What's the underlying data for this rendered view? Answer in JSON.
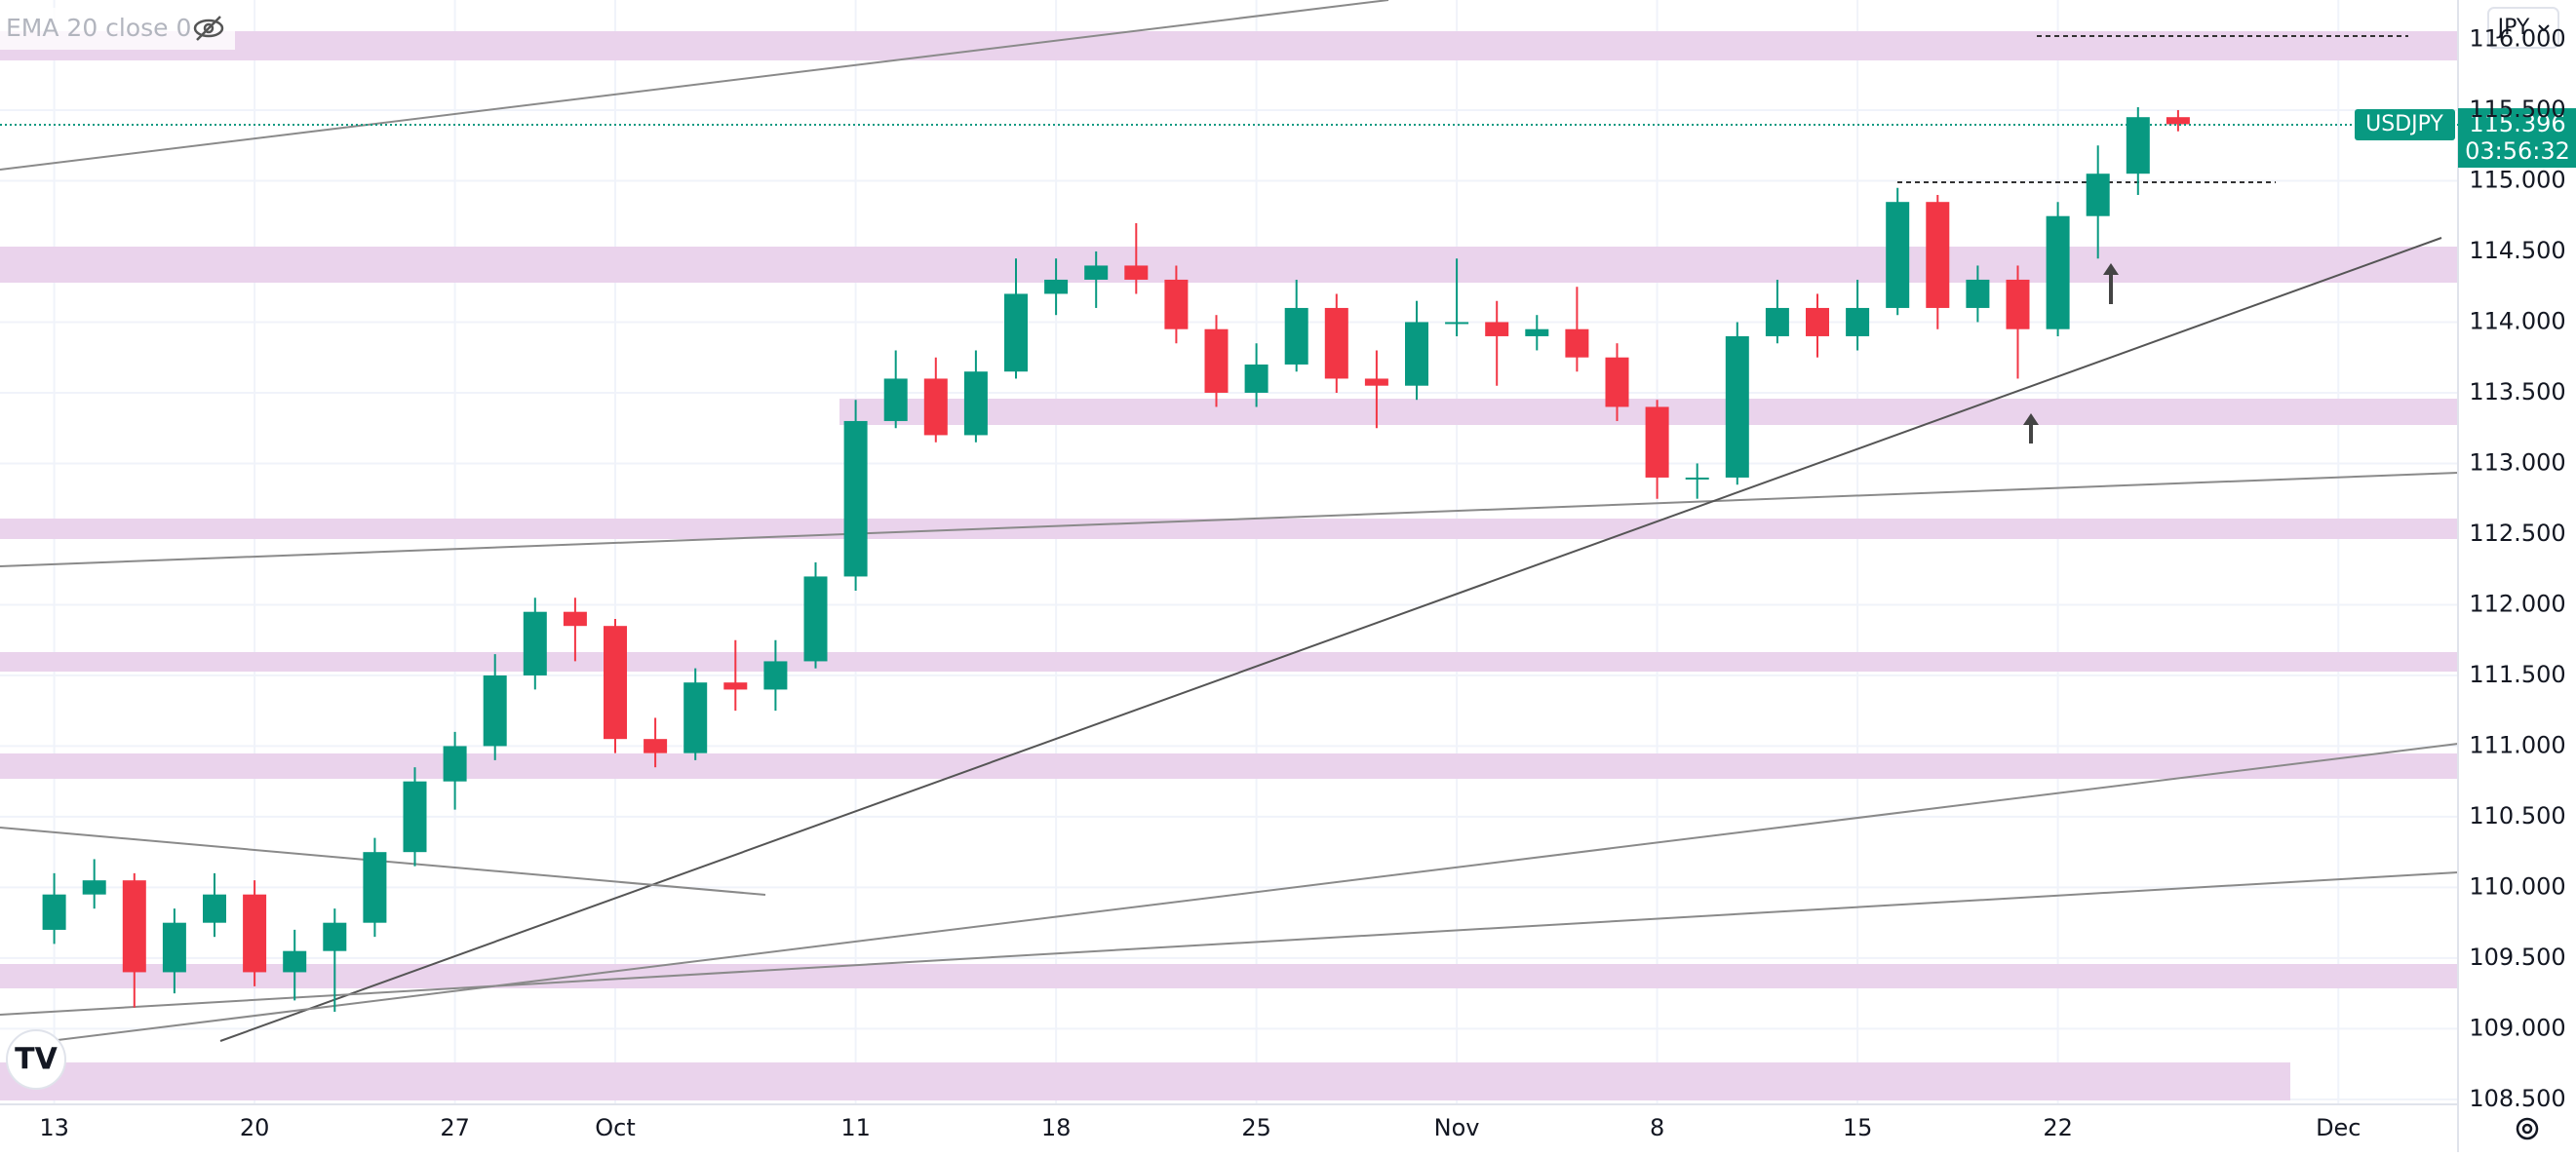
{
  "chart_data": {
    "type": "candlestick",
    "indicator_label": "EMA 20 close 0",
    "currency_button": "JPY",
    "symbol": "USDJPY",
    "last_price": 115.396,
    "countdown": "03:56:32",
    "categories": [
      "13",
      null,
      null,
      null,
      null,
      "20",
      null,
      null,
      null,
      null,
      "27",
      null,
      null,
      null,
      "Oct",
      null,
      null,
      null,
      null,
      null,
      "11",
      null,
      null,
      null,
      null,
      "18",
      null,
      null,
      null,
      null,
      "25",
      null,
      null,
      null,
      null,
      "Nov",
      null,
      null,
      null,
      null,
      "8",
      null,
      null,
      null,
      null,
      "15",
      null,
      null,
      null,
      null,
      "22",
      null,
      null,
      null,
      null,
      null,
      null,
      "Dec",
      null,
      null
    ],
    "open": [
      109.7,
      109.95,
      110.05,
      109.4,
      109.75,
      109.95,
      109.4,
      109.55,
      109.75,
      110.25,
      110.75,
      111.0,
      111.5,
      111.95,
      111.85,
      111.05,
      110.95,
      111.45,
      111.4,
      111.6,
      112.2,
      113.3,
      113.6,
      113.2,
      113.65,
      114.2,
      114.3,
      114.4,
      114.3,
      113.95,
      113.5,
      113.7,
      114.1,
      113.6,
      113.55,
      114.0,
      114.0,
      113.9,
      113.95,
      113.75,
      113.4,
      112.9,
      112.9,
      113.9,
      114.1,
      113.9,
      114.1,
      114.85,
      114.1,
      114.3,
      113.95,
      114.75,
      115.05,
      115.45,
      null,
      null,
      null,
      null,
      null,
      null
    ],
    "high": [
      110.1,
      110.2,
      110.1,
      109.85,
      110.1,
      110.05,
      109.7,
      109.85,
      110.35,
      110.85,
      111.1,
      111.65,
      112.05,
      112.05,
      111.9,
      111.2,
      111.55,
      111.75,
      111.75,
      112.3,
      113.45,
      113.8,
      113.75,
      113.8,
      114.45,
      114.45,
      114.5,
      114.7,
      114.4,
      114.05,
      113.85,
      114.3,
      114.2,
      113.8,
      114.15,
      114.45,
      114.15,
      114.05,
      114.25,
      113.85,
      113.45,
      113.0,
      114.0,
      114.3,
      114.2,
      114.3,
      114.95,
      114.9,
      114.4,
      114.4,
      114.85,
      115.25,
      115.52,
      115.5,
      null,
      null,
      null,
      null,
      null,
      null
    ],
    "low": [
      109.6,
      109.85,
      109.15,
      109.25,
      109.65,
      109.3,
      109.2,
      109.12,
      109.65,
      110.15,
      110.55,
      110.9,
      111.4,
      111.6,
      110.95,
      110.85,
      110.9,
      111.25,
      111.25,
      111.55,
      112.1,
      113.25,
      113.15,
      113.15,
      113.6,
      114.05,
      114.1,
      114.2,
      113.85,
      113.4,
      113.4,
      113.65,
      113.5,
      113.25,
      113.45,
      113.9,
      113.55,
      113.8,
      113.65,
      113.3,
      112.75,
      112.75,
      112.85,
      113.85,
      113.75,
      113.8,
      114.05,
      113.95,
      114.0,
      113.6,
      113.9,
      114.45,
      114.9,
      115.35,
      null,
      null,
      null,
      null,
      null,
      null
    ],
    "close": [
      109.95,
      110.05,
      109.4,
      109.75,
      109.95,
      109.4,
      109.55,
      109.75,
      110.25,
      110.75,
      111.0,
      111.5,
      111.95,
      111.85,
      111.05,
      110.95,
      111.45,
      111.4,
      111.6,
      112.2,
      113.3,
      113.6,
      113.2,
      113.65,
      114.2,
      114.3,
      114.4,
      114.3,
      113.95,
      113.5,
      113.7,
      114.1,
      113.6,
      113.55,
      114.0,
      114.0,
      113.9,
      113.95,
      113.75,
      113.4,
      112.9,
      112.9,
      113.9,
      114.1,
      113.9,
      114.1,
      114.85,
      114.1,
      114.3,
      113.95,
      114.75,
      115.05,
      115.45,
      115.4,
      null,
      null,
      null,
      null,
      null,
      null
    ],
    "up_color": "#089981",
    "down_color": "#f23645",
    "ylim": [
      108.465,
      116.279
    ],
    "yticks": [
      {
        "value": 108.5,
        "label": "108.500"
      },
      {
        "value": 109,
        "label": "109.000"
      },
      {
        "value": 109.5,
        "label": "109.500"
      },
      {
        "value": 110,
        "label": "110.000"
      },
      {
        "value": 110.5,
        "label": "110.500"
      },
      {
        "value": 111,
        "label": "111.000"
      },
      {
        "value": 111.5,
        "label": "111.500"
      },
      {
        "value": 112,
        "label": "112.000"
      },
      {
        "value": 112.5,
        "label": "112.500"
      },
      {
        "value": 113,
        "label": "113.000"
      },
      {
        "value": 113.5,
        "label": "113.500"
      },
      {
        "value": 114,
        "label": "114.000"
      },
      {
        "value": 114.5,
        "label": "114.500"
      },
      {
        "value": 115,
        "label": "115.000"
      },
      {
        "value": 115.5,
        "label": "115.500"
      },
      {
        "value": 116,
        "label": "116.000"
      }
    ],
    "grid": true
  }
}
